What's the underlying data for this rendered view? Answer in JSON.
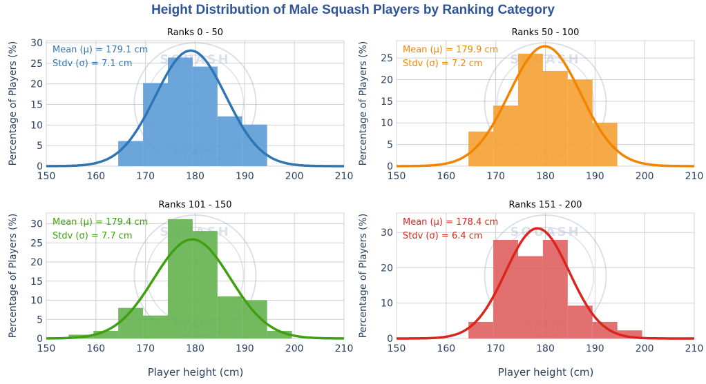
{
  "title": "Height Distribution of Male Squash Players by Ranking Category",
  "watermark": {
    "top_text": "SQUASH",
    "bottom_text": "STATS"
  },
  "chart_data": [
    {
      "type": "bar",
      "subtitle": "Ranks 0 - 50",
      "color": "#2E75B6",
      "bar_color": "#5B9BD5",
      "annotation": [
        "Mean (μ) = 179.1 cm",
        "Stdv (σ) = 7.1 cm"
      ],
      "mean": 179.1,
      "stdev": 7.1,
      "bins": [
        [
          164.5,
          169.5,
          6.1
        ],
        [
          169.5,
          174.5,
          20.2
        ],
        [
          174.5,
          179.5,
          26.4
        ],
        [
          179.5,
          184.5,
          24.2
        ],
        [
          184.5,
          189.5,
          12.1
        ],
        [
          189.5,
          194.5,
          10.1
        ]
      ],
      "xlabel": "",
      "ylabel": "Percentage of Players (%)",
      "xlim": [
        150,
        210
      ],
      "ylim": [
        0,
        30.5
      ],
      "xticks": [
        150,
        160,
        170,
        180,
        190,
        200,
        210
      ],
      "yticks": [
        0,
        5,
        10,
        15,
        20,
        25,
        30
      ]
    },
    {
      "type": "bar",
      "subtitle": "Ranks 50 - 100",
      "color": "#F28500",
      "bar_color": "#F5A033",
      "annotation": [
        "Mean (μ) = 179.9 cm",
        "Stdv (σ) = 7.2 cm"
      ],
      "mean": 179.9,
      "stdev": 7.2,
      "bins": [
        [
          164.5,
          169.5,
          8
        ],
        [
          169.5,
          174.5,
          14
        ],
        [
          174.5,
          179.5,
          26
        ],
        [
          179.5,
          184.5,
          22
        ],
        [
          184.5,
          189.5,
          20
        ],
        [
          189.5,
          194.5,
          10
        ]
      ],
      "xlabel": "",
      "ylabel": "Percentage of Players (%)",
      "xlim": [
        150,
        210
      ],
      "ylim": [
        0,
        29
      ],
      "xticks": [
        150,
        160,
        170,
        180,
        190,
        200,
        210
      ],
      "yticks": [
        0,
        5,
        10,
        15,
        20,
        25
      ]
    },
    {
      "type": "bar",
      "subtitle": "Ranks 101 - 150",
      "color": "#3FA010",
      "bar_color": "#63B14F",
      "annotation": [
        "Mean (μ) = 179.4 cm",
        "Stdv (σ) = 7.7 cm"
      ],
      "mean": 179.4,
      "stdev": 7.7,
      "bins": [
        [
          154.5,
          159.5,
          1
        ],
        [
          159.5,
          164.5,
          2
        ],
        [
          164.5,
          169.5,
          8
        ],
        [
          169.5,
          174.5,
          6
        ],
        [
          174.5,
          179.5,
          31.2
        ],
        [
          179.5,
          184.5,
          28.1
        ],
        [
          184.5,
          189.5,
          11
        ],
        [
          189.5,
          194.5,
          10
        ],
        [
          194.5,
          199.5,
          2
        ]
      ],
      "xlabel": "Player height (cm)",
      "ylabel": "Percentage of Players (%)",
      "xlim": [
        150,
        210
      ],
      "ylim": [
        0,
        32.8
      ],
      "xticks": [
        150,
        160,
        170,
        180,
        190,
        200,
        210
      ],
      "yticks": [
        0,
        5,
        10,
        15,
        20,
        25,
        30
      ]
    },
    {
      "type": "bar",
      "subtitle": "Ranks 151 - 200",
      "color": "#D9261C",
      "bar_color": "#E06060",
      "annotation": [
        "Mean (μ) = 178.4 cm",
        "Stdv (σ) = 6.4 cm"
      ],
      "mean": 178.4,
      "stdev": 6.4,
      "bins": [
        [
          164.5,
          169.5,
          4.7
        ],
        [
          169.5,
          174.5,
          27.9
        ],
        [
          174.5,
          179.5,
          23.3
        ],
        [
          179.5,
          184.5,
          27.9
        ],
        [
          184.5,
          189.5,
          9.3
        ],
        [
          189.5,
          194.5,
          4.7
        ],
        [
          194.5,
          199.5,
          2.3
        ]
      ],
      "xlabel": "Player height (cm)",
      "ylabel": "Percentage of Players (%)",
      "xlim": [
        150,
        210
      ],
      "ylim": [
        0,
        35.5
      ],
      "xticks": [
        150,
        160,
        170,
        180,
        190,
        200,
        210
      ],
      "yticks": [
        0,
        10,
        20,
        30
      ]
    }
  ]
}
